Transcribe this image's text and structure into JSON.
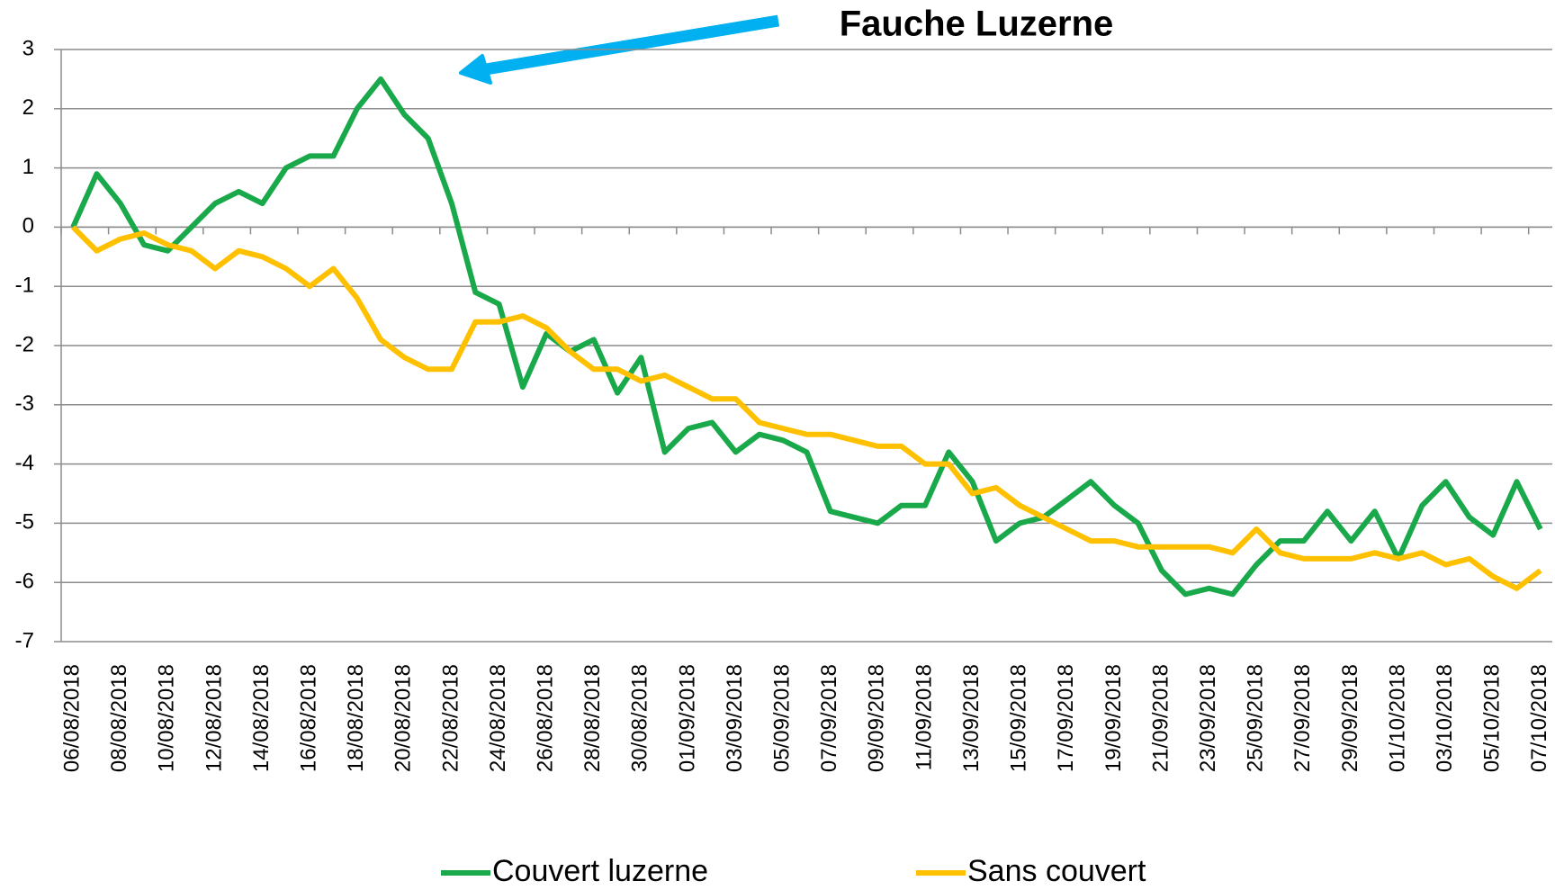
{
  "chart_data": {
    "type": "line",
    "annotation": "Fauche Luzerne",
    "categories": [
      "06/08/2018",
      null,
      "08/08/2018",
      null,
      "10/08/2018",
      null,
      "12/08/2018",
      null,
      "14/08/2018",
      null,
      "16/08/2018",
      null,
      "18/08/2018",
      null,
      "20/08/2018",
      null,
      "22/08/2018",
      null,
      "24/08/2018",
      null,
      "26/08/2018",
      null,
      "28/08/2018",
      null,
      "30/08/2018",
      null,
      "01/09/2018",
      null,
      "03/09/2018",
      null,
      "05/09/2018",
      null,
      "07/09/2018",
      null,
      "09/09/2018",
      null,
      "11/09/2018",
      null,
      "13/09/2018",
      null,
      "15/09/2018",
      null,
      "17/09/2018",
      null,
      "19/09/2018",
      null,
      "21/09/2018",
      null,
      "23/09/2018",
      null,
      "25/09/2018",
      null,
      "27/09/2018",
      null,
      "29/09/2018",
      null,
      "01/10/2018",
      null,
      "03/10/2018",
      null,
      "05/10/2018",
      null,
      "07/10/2018"
    ],
    "series": [
      {
        "name": "Couvert luzerne",
        "color": "#19a84a",
        "values": [
          0,
          0.9,
          0.4,
          -0.3,
          -0.4,
          0,
          0.4,
          0.6,
          0.4,
          1.0,
          1.2,
          1.2,
          2.0,
          2.5,
          1.9,
          1.5,
          0.4,
          -1.1,
          -1.3,
          -2.7,
          -1.8,
          -2.1,
          -1.9,
          -2.8,
          -2.2,
          -3.8,
          -3.4,
          -3.3,
          -3.8,
          -3.5,
          -3.6,
          -3.8,
          -4.8,
          -4.9,
          -5.0,
          -4.7,
          -4.7,
          -3.8,
          -4.3,
          -5.3,
          -5.0,
          -4.9,
          -4.6,
          -4.3,
          -4.7,
          -5.0,
          -5.8,
          -6.2,
          -6.1,
          -6.2,
          -5.7,
          -5.3,
          -5.3,
          -4.8,
          -5.3,
          -4.8,
          -5.6,
          -4.7,
          -4.3,
          -4.9,
          -5.2,
          -4.3,
          -5.1
        ]
      },
      {
        "name": "Sans couvert",
        "color": "#ffc000",
        "values": [
          0,
          -0.4,
          -0.2,
          -0.1,
          -0.3,
          -0.4,
          -0.7,
          -0.4,
          -0.5,
          -0.7,
          -1.0,
          -0.7,
          -1.2,
          -1.9,
          -2.2,
          -2.4,
          -2.4,
          -1.6,
          -1.6,
          -1.5,
          -1.7,
          -2.1,
          -2.4,
          -2.4,
          -2.6,
          -2.5,
          -2.7,
          -2.9,
          -2.9,
          -3.3,
          -3.4,
          -3.5,
          -3.5,
          -3.6,
          -3.7,
          -3.7,
          -4.0,
          -4.0,
          -4.5,
          -4.4,
          -4.7,
          -4.9,
          -5.1,
          -5.3,
          -5.3,
          -5.4,
          -5.4,
          -5.4,
          -5.4,
          -5.5,
          -5.1,
          -5.5,
          -5.6,
          -5.6,
          -5.6,
          -5.5,
          -5.6,
          -5.5,
          -5.7,
          -5.6,
          -5.9,
          -6.1,
          -5.8
        ]
      }
    ],
    "ylim": [
      -7,
      3
    ],
    "yticks": [
      -7,
      -6,
      -5,
      -4,
      -3,
      -2,
      -1,
      0,
      1,
      2,
      3
    ],
    "grid": true,
    "legend": "bottom"
  }
}
